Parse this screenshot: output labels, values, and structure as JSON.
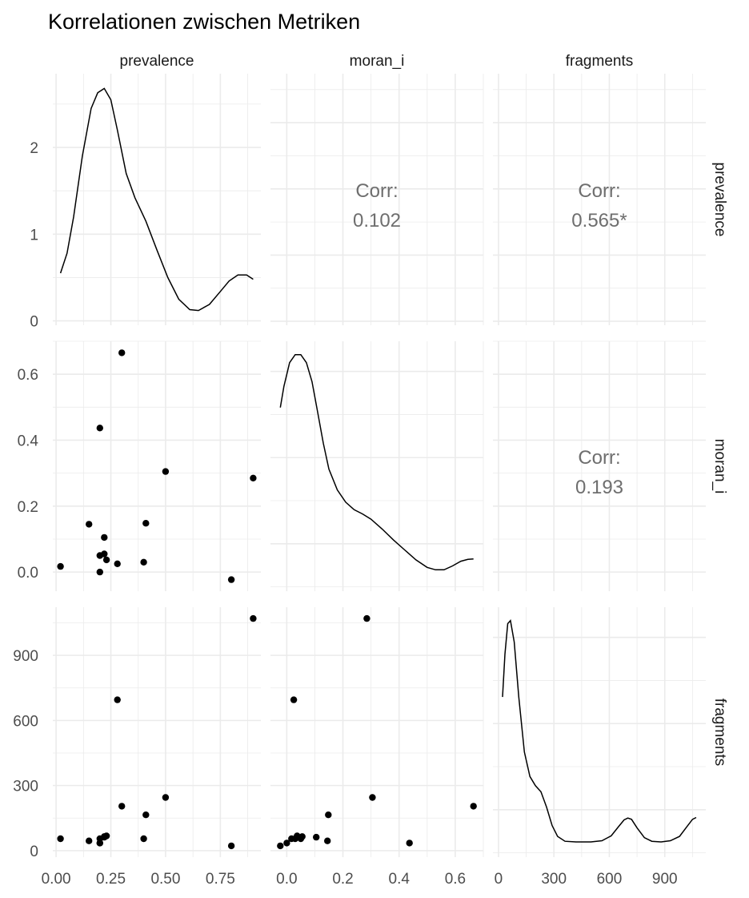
{
  "chart_data": {
    "type": "scatter",
    "title": "Korrelationen zwischen Metriken",
    "variables": [
      "prevalence",
      "moran_i",
      "fragments"
    ],
    "correlations": [
      {
        "row": "prevalence",
        "col": "moran_i",
        "label": "Corr:",
        "value": "0.102"
      },
      {
        "row": "prevalence",
        "col": "fragments",
        "label": "Corr:",
        "value": "0.565*"
      },
      {
        "row": "moran_i",
        "col": "fragments",
        "label": "Corr:",
        "value": "0.193"
      }
    ],
    "points": [
      {
        "prevalence": 0.02,
        "moran_i": 0.017,
        "fragments": 55
      },
      {
        "prevalence": 0.15,
        "moran_i": 0.145,
        "fragments": 45
      },
      {
        "prevalence": 0.2,
        "moran_i": 0.05,
        "fragments": 55
      },
      {
        "prevalence": 0.2,
        "moran_i": 0.0,
        "fragments": 35
      },
      {
        "prevalence": 0.2,
        "moran_i": 0.437,
        "fragments": 35
      },
      {
        "prevalence": 0.22,
        "moran_i": 0.105,
        "fragments": 62
      },
      {
        "prevalence": 0.22,
        "moran_i": 0.055,
        "fragments": 65
      },
      {
        "prevalence": 0.23,
        "moran_i": 0.037,
        "fragments": 68
      },
      {
        "prevalence": 0.28,
        "moran_i": 0.025,
        "fragments": 695
      },
      {
        "prevalence": 0.3,
        "moran_i": 0.665,
        "fragments": 205
      },
      {
        "prevalence": 0.4,
        "moran_i": 0.03,
        "fragments": 55
      },
      {
        "prevalence": 0.41,
        "moran_i": 0.148,
        "fragments": 165
      },
      {
        "prevalence": 0.5,
        "moran_i": 0.305,
        "fragments": 245
      },
      {
        "prevalence": 0.8,
        "moran_i": -0.023,
        "fragments": 22
      },
      {
        "prevalence": 0.9,
        "moran_i": 0.285,
        "fragments": 1070
      }
    ],
    "densities": {
      "prevalence": [
        [
          0.02,
          0.55
        ],
        [
          0.05,
          0.78
        ],
        [
          0.08,
          1.2
        ],
        [
          0.12,
          1.9
        ],
        [
          0.16,
          2.45
        ],
        [
          0.19,
          2.63
        ],
        [
          0.22,
          2.68
        ],
        [
          0.25,
          2.55
        ],
        [
          0.28,
          2.2
        ],
        [
          0.32,
          1.7
        ],
        [
          0.36,
          1.42
        ],
        [
          0.41,
          1.15
        ],
        [
          0.46,
          0.82
        ],
        [
          0.51,
          0.5
        ],
        [
          0.56,
          0.25
        ],
        [
          0.61,
          0.13
        ],
        [
          0.65,
          0.12
        ],
        [
          0.7,
          0.19
        ],
        [
          0.75,
          0.34
        ],
        [
          0.79,
          0.46
        ],
        [
          0.83,
          0.53
        ],
        [
          0.87,
          0.53
        ],
        [
          0.9,
          0.48
        ]
      ],
      "moran_i": [
        [
          -0.023,
          3.6
        ],
        [
          -0.01,
          4.05
        ],
        [
          0.01,
          4.55
        ],
        [
          0.03,
          4.72
        ],
        [
          0.05,
          4.72
        ],
        [
          0.07,
          4.55
        ],
        [
          0.09,
          4.15
        ],
        [
          0.11,
          3.5
        ],
        [
          0.13,
          2.85
        ],
        [
          0.15,
          2.3
        ],
        [
          0.18,
          1.86
        ],
        [
          0.21,
          1.6
        ],
        [
          0.24,
          1.44
        ],
        [
          0.27,
          1.35
        ],
        [
          0.3,
          1.24
        ],
        [
          0.34,
          1.03
        ],
        [
          0.38,
          0.8
        ],
        [
          0.42,
          0.59
        ],
        [
          0.46,
          0.38
        ],
        [
          0.5,
          0.22
        ],
        [
          0.53,
          0.17
        ],
        [
          0.56,
          0.17
        ],
        [
          0.59,
          0.25
        ],
        [
          0.62,
          0.35
        ],
        [
          0.645,
          0.39
        ],
        [
          0.665,
          0.4
        ]
      ],
      "fragments": [
        [
          22,
          0.0024
        ],
        [
          35,
          0.0031
        ],
        [
          50,
          0.0036
        ],
        [
          65,
          0.00365
        ],
        [
          85,
          0.0033
        ],
        [
          110,
          0.0024
        ],
        [
          140,
          0.0015
        ],
        [
          170,
          0.0011
        ],
        [
          200,
          0.00095
        ],
        [
          230,
          0.00085
        ],
        [
          260,
          0.0006
        ],
        [
          290,
          0.0003
        ],
        [
          320,
          0.00012
        ],
        [
          360,
          4e-05
        ],
        [
          420,
          3e-05
        ],
        [
          500,
          3e-05
        ],
        [
          560,
          5e-05
        ],
        [
          610,
          0.00013
        ],
        [
          650,
          0.00028
        ],
        [
          680,
          0.00039
        ],
        [
          700,
          0.00042
        ],
        [
          720,
          0.0004
        ],
        [
          750,
          0.00026
        ],
        [
          790,
          0.0001
        ],
        [
          830,
          4e-05
        ],
        [
          880,
          3e-05
        ],
        [
          930,
          5e-05
        ],
        [
          980,
          0.00012
        ],
        [
          1020,
          0.00028
        ],
        [
          1050,
          0.0004
        ],
        [
          1070,
          0.00043
        ]
      ]
    },
    "axes": {
      "prevalence": {
        "lim": [
          -0.015,
          0.935
        ],
        "ticks": [
          0.0,
          0.25,
          0.5,
          0.75
        ],
        "tick_labels": [
          "0.00",
          "0.25",
          "0.50",
          "0.75"
        ]
      },
      "moran_i": {
        "lim": [
          -0.058,
          0.7
        ],
        "ticks": [
          0.0,
          0.2,
          0.4,
          0.6
        ],
        "tick_labels": [
          "0.0",
          "0.2",
          "0.4",
          "0.6"
        ]
      },
      "fragments": {
        "lim": [
          -30,
          1122
        ],
        "ticks": [
          0,
          300,
          600,
          900
        ],
        "tick_labels": [
          "0",
          "300",
          "600",
          "900"
        ]
      }
    },
    "density_axis": {
      "lim": [
        -0.05,
        2.85
      ],
      "ticks": [
        0,
        1,
        2
      ],
      "tick_labels": [
        "0",
        "1",
        "2"
      ]
    },
    "grid": true,
    "point_color": "#000000",
    "line_color": "#000000",
    "grid_color": "#ebebeb"
  }
}
